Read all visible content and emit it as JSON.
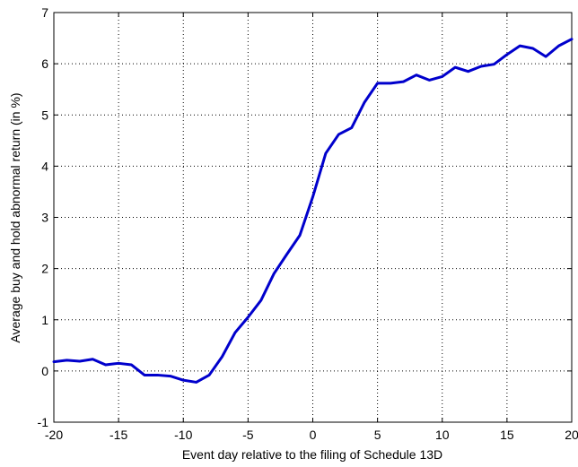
{
  "chart_data": {
    "type": "line",
    "title": "",
    "xlabel": "Event day relative to the filing of Schedule 13D",
    "ylabel": "Average buy and hold abnormal return (in %)",
    "xlim": [
      -20,
      20
    ],
    "ylim": [
      -1,
      7
    ],
    "xticks": [
      -20,
      -15,
      -10,
      -5,
      0,
      5,
      10,
      15,
      20
    ],
    "yticks": [
      -1,
      0,
      1,
      2,
      3,
      4,
      5,
      6,
      7
    ],
    "grid": true,
    "legend": "none",
    "series": [
      {
        "color": "#0000cc",
        "x": [
          -20,
          -19,
          -18,
          -17,
          -16,
          -15,
          -14,
          -13,
          -12,
          -11,
          -10,
          -9,
          -8,
          -7,
          -6,
          -5,
          -4,
          -3,
          -2,
          -1,
          0,
          1,
          2,
          3,
          4,
          5,
          6,
          7,
          8,
          9,
          10,
          11,
          12,
          13,
          14,
          15,
          16,
          17,
          18,
          19,
          20
        ],
        "y": [
          0.18,
          0.21,
          0.19,
          0.23,
          0.12,
          0.15,
          0.12,
          -0.08,
          -0.08,
          -0.1,
          -0.18,
          -0.22,
          -0.08,
          0.28,
          0.75,
          1.05,
          1.38,
          1.9,
          2.28,
          2.65,
          3.4,
          4.25,
          4.62,
          4.75,
          5.25,
          5.62,
          5.62,
          5.65,
          5.78,
          5.68,
          5.75,
          5.93,
          5.85,
          5.95,
          5.99,
          6.18,
          6.35,
          6.3,
          6.14,
          6.35,
          6.48
        ]
      }
    ]
  }
}
